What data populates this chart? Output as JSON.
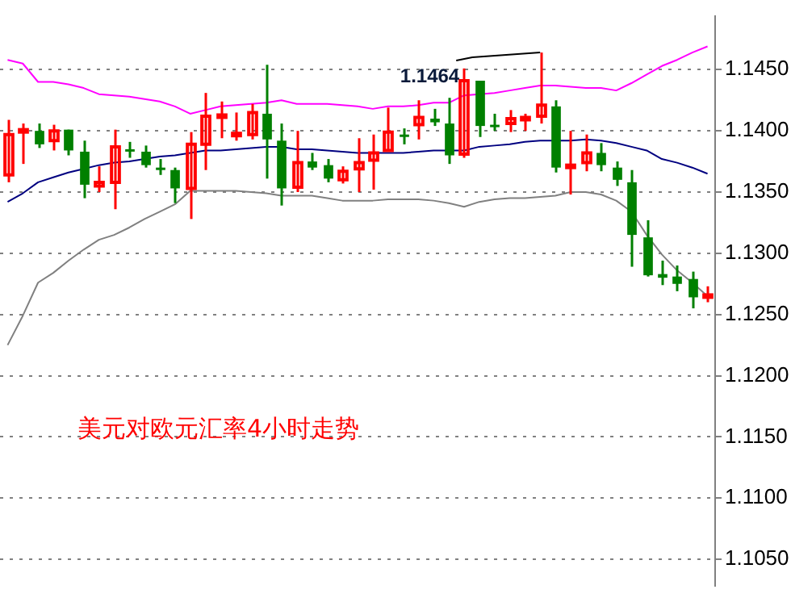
{
  "chart_data": {
    "type": "candlestick",
    "categories": [
      null,
      null,
      null,
      null,
      null,
      null,
      null,
      null,
      null,
      null,
      null,
      null,
      null,
      null,
      null,
      null,
      null,
      null,
      null,
      null,
      null,
      null,
      null,
      null,
      null,
      null,
      null,
      null,
      null,
      null,
      null,
      null,
      null,
      null,
      null,
      null,
      null,
      null,
      null,
      null,
      null,
      null,
      null,
      null,
      null,
      null,
      null
    ],
    "ohlc": [
      [
        1.1364,
        1.1409,
        1.1358,
        1.1397
      ],
      [
        1.1399,
        1.1406,
        1.1373,
        1.1401
      ],
      [
        1.14,
        1.1406,
        1.1386,
        1.1389
      ],
      [
        1.1392,
        1.1405,
        1.1384,
        1.14
      ],
      [
        1.1401,
        1.1401,
        1.138,
        1.1384
      ],
      [
        1.1383,
        1.1392,
        1.1345,
        1.1356
      ],
      [
        1.1355,
        1.1371,
        1.135,
        1.1358
      ],
      [
        1.1358,
        1.1401,
        1.1336,
        1.1387
      ],
      [
        1.1385,
        1.1391,
        1.1378,
        1.1384
      ],
      [
        1.1383,
        1.1388,
        1.137,
        1.1372
      ],
      [
        1.137,
        1.1377,
        1.1364,
        1.1368
      ],
      [
        1.1368,
        1.137,
        1.1341,
        1.1353
      ],
      [
        1.1353,
        1.1399,
        1.1328,
        1.1389
      ],
      [
        1.1389,
        1.1431,
        1.1368,
        1.1412
      ],
      [
        1.1412,
        1.1424,
        1.1394,
        1.1413
      ],
      [
        1.1397,
        1.1415,
        1.1392,
        1.1398
      ],
      [
        1.1397,
        1.1422,
        1.1393,
        1.1415
      ],
      [
        1.1414,
        1.1454,
        1.1361,
        1.1393
      ],
      [
        1.1392,
        1.1406,
        1.1339,
        1.1353
      ],
      [
        1.1354,
        1.14,
        1.135,
        1.1374
      ],
      [
        1.1375,
        1.1382,
        1.1368,
        1.137
      ],
      [
        1.1372,
        1.1377,
        1.1358,
        1.1361
      ],
      [
        1.136,
        1.1371,
        1.1357,
        1.1367
      ],
      [
        1.1369,
        1.1394,
        1.135,
        1.1374
      ],
      [
        1.1376,
        1.1397,
        1.1352,
        1.1382
      ],
      [
        1.1384,
        1.1419,
        1.1384,
        1.1399
      ],
      [
        1.1397,
        1.1402,
        1.1389,
        1.1396
      ],
      [
        1.1405,
        1.1425,
        1.1393,
        1.1411
      ],
      [
        1.141,
        1.1418,
        1.1404,
        1.1407
      ],
      [
        1.1406,
        1.1427,
        1.1373,
        1.138
      ],
      [
        1.1381,
        1.1451,
        1.1378,
        1.1441
      ],
      [
        1.1441,
        1.1441,
        1.1395,
        1.1404
      ],
      [
        1.1405,
        1.1414,
        1.14,
        1.1404
      ],
      [
        1.1406,
        1.1417,
        1.1399,
        1.141
      ],
      [
        1.141,
        1.1414,
        1.14,
        1.1411
      ],
      [
        1.1412,
        1.1464,
        1.1406,
        1.1421
      ],
      [
        1.142,
        1.1425,
        1.1366,
        1.137
      ],
      [
        1.137,
        1.14,
        1.1348,
        1.1372
      ],
      [
        1.1374,
        1.1397,
        1.1367,
        1.1382
      ],
      [
        1.1382,
        1.139,
        1.1367,
        1.1372
      ],
      [
        1.137,
        1.1375,
        1.1355,
        1.136
      ],
      [
        1.1358,
        1.1368,
        1.1289,
        1.1315
      ],
      [
        1.1313,
        1.1327,
        1.1281,
        1.1282
      ],
      [
        1.1283,
        1.1294,
        1.1274,
        1.128
      ],
      [
        1.1281,
        1.129,
        1.1269,
        1.1275
      ],
      [
        1.1279,
        1.1285,
        1.1255,
        1.1264
      ],
      [
        1.1265,
        1.1273,
        1.126,
        1.1266
      ]
    ],
    "colors": [
      "#ff0000",
      "#ff0000",
      "#008000",
      "#ff0000",
      "#008000",
      "#008000",
      "#ff0000",
      "#ff0000",
      "#008000",
      "#008000",
      "#008000",
      "#008000",
      "#ff0000",
      "#ff0000",
      "#ff0000",
      "#ff0000",
      "#ff0000",
      "#008000",
      "#008000",
      "#ff0000",
      "#008000",
      "#008000",
      "#ff0000",
      "#ff0000",
      "#ff0000",
      "#ff0000",
      "#008000",
      "#ff0000",
      "#008000",
      "#008000",
      "#ff0000",
      "#008000",
      "#008000",
      "#ff0000",
      "#ff0000",
      "#ff0000",
      "#008000",
      "#ff0000",
      "#ff0000",
      "#008000",
      "#008000",
      "#008000",
      "#008000",
      "#008000",
      "#008000",
      "#008000",
      "#ff0000"
    ],
    "series": [
      {
        "type": "line",
        "color": "#ff00ff",
        "values": [
          1.1458,
          1.1455,
          1.144,
          1.144,
          1.1438,
          1.1435,
          1.143,
          1.1429,
          1.1428,
          1.1426,
          1.1424,
          1.142,
          1.1414,
          1.1417,
          1.142,
          1.1421,
          1.1422,
          1.1423,
          1.1425,
          1.1422,
          1.1422,
          1.1422,
          1.1421,
          1.142,
          1.1418,
          1.142,
          1.142,
          1.1421,
          1.1423,
          1.1423,
          1.1429,
          1.143,
          1.1431,
          1.1433,
          1.1435,
          1.1437,
          1.1437,
          1.1436,
          1.1435,
          1.1435,
          1.1433,
          1.1439,
          1.1446,
          1.1453,
          1.1458,
          1.1464,
          1.1469
        ]
      },
      {
        "type": "line",
        "color": "#000080",
        "values": [
          1.1342,
          1.1349,
          1.1358,
          1.1362,
          1.1366,
          1.1369,
          1.1372,
          1.1374,
          1.1375,
          1.1377,
          1.1379,
          1.138,
          1.1382,
          1.1384,
          1.1384,
          1.1385,
          1.1386,
          1.1387,
          1.1387,
          1.1385,
          1.1385,
          1.1384,
          1.1383,
          1.1382,
          1.1382,
          1.1382,
          1.1382,
          1.1383,
          1.1384,
          1.1384,
          1.1384,
          1.1387,
          1.1388,
          1.1389,
          1.1391,
          1.1392,
          1.1392,
          1.1392,
          1.1393,
          1.1392,
          1.139,
          1.1387,
          1.1384,
          1.1377,
          1.1374,
          1.137,
          1.1365
        ]
      },
      {
        "type": "line",
        "color": "#808080",
        "values": [
          1.1225,
          1.1249,
          1.1276,
          1.1284,
          1.1294,
          1.1303,
          1.1311,
          1.1315,
          1.1321,
          1.1328,
          1.1334,
          1.134,
          1.1351,
          1.1351,
          1.1351,
          1.1351,
          1.135,
          1.1349,
          1.1347,
          1.1347,
          1.1347,
          1.1345,
          1.1343,
          1.1343,
          1.1343,
          1.1344,
          1.1344,
          1.1344,
          1.1343,
          1.1341,
          1.1338,
          1.1342,
          1.1344,
          1.1345,
          1.1345,
          1.1346,
          1.1347,
          1.135,
          1.135,
          1.1348,
          1.1343,
          1.1334,
          1.1315,
          1.1299,
          1.1286,
          1.1276,
          1.1265
        ]
      }
    ],
    "ylim": [
      1.1028,
      1.1494
    ],
    "yticks": [
      {
        "value": 1.105,
        "label": "1.1050"
      },
      {
        "value": 1.11,
        "label": "1.1100"
      },
      {
        "value": 1.115,
        "label": "1.1150"
      },
      {
        "value": 1.12,
        "label": "1.1200"
      },
      {
        "value": 1.125,
        "label": "1.1250"
      },
      {
        "value": 1.13,
        "label": "1.1300"
      },
      {
        "value": 1.135,
        "label": "1.1350"
      },
      {
        "value": 1.14,
        "label": "1.1400"
      },
      {
        "value": 1.145,
        "label": "1.1450"
      }
    ],
    "grid": "y",
    "legend": false,
    "marker": "none",
    "line_style": "solid",
    "annotations": [
      "1.1464",
      "美元对欧元汇率4小时走势"
    ]
  }
}
